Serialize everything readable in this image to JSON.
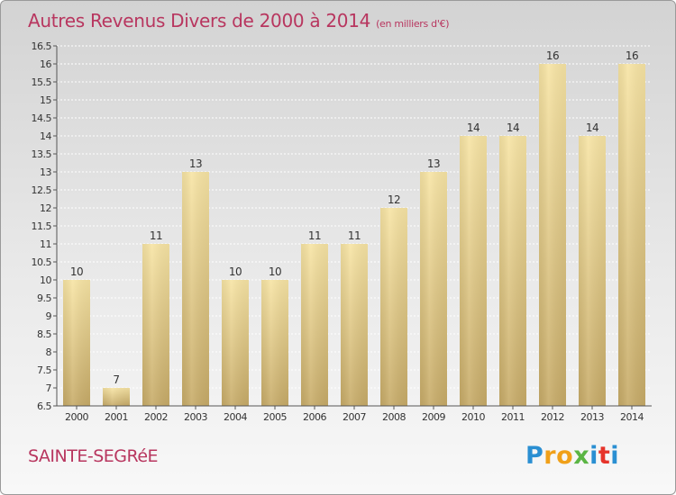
{
  "title": "Autres Revenus Divers de 2000 à 2014",
  "unit": "(en milliers d'€)",
  "location": "SAINTE-SEGRéE",
  "logo": {
    "letters": [
      "P",
      "r",
      "o",
      "x",
      "i",
      "t",
      "i"
    ]
  },
  "chart_data": {
    "type": "bar",
    "title": "Autres Revenus Divers de 2000 à 2014",
    "ylabel": "(en milliers d'€)",
    "xlabel": "",
    "categories": [
      "2000",
      "2001",
      "2002",
      "2003",
      "2004",
      "2005",
      "2006",
      "2007",
      "2008",
      "2009",
      "2010",
      "2011",
      "2012",
      "2013",
      "2014"
    ],
    "values": [
      10,
      7,
      11,
      13,
      10,
      10,
      11,
      11,
      12,
      13,
      14,
      14,
      16,
      14,
      16
    ],
    "data_labels": [
      "10",
      "7",
      "11",
      "13",
      "10",
      "10",
      "11",
      "11",
      "12",
      "13",
      "14",
      "14",
      "16",
      "14",
      "16"
    ],
    "ylim": [
      6.5,
      16.5
    ],
    "yticks": [
      "6.5",
      "7",
      "7.5",
      "8",
      "8.5",
      "9",
      "9.5",
      "10",
      "10.5",
      "11",
      "11.5",
      "12",
      "12.5",
      "13",
      "13.5",
      "14",
      "14.5",
      "15",
      "15.5",
      "16",
      "16.5"
    ],
    "grid": "horizontal dotted",
    "legend": "none",
    "colors": {
      "bar_light": "#f5e1a0",
      "bar_dark": "#c9ae6c",
      "grid": "#ffffff",
      "axis": "#555555",
      "text": "#333333"
    }
  }
}
